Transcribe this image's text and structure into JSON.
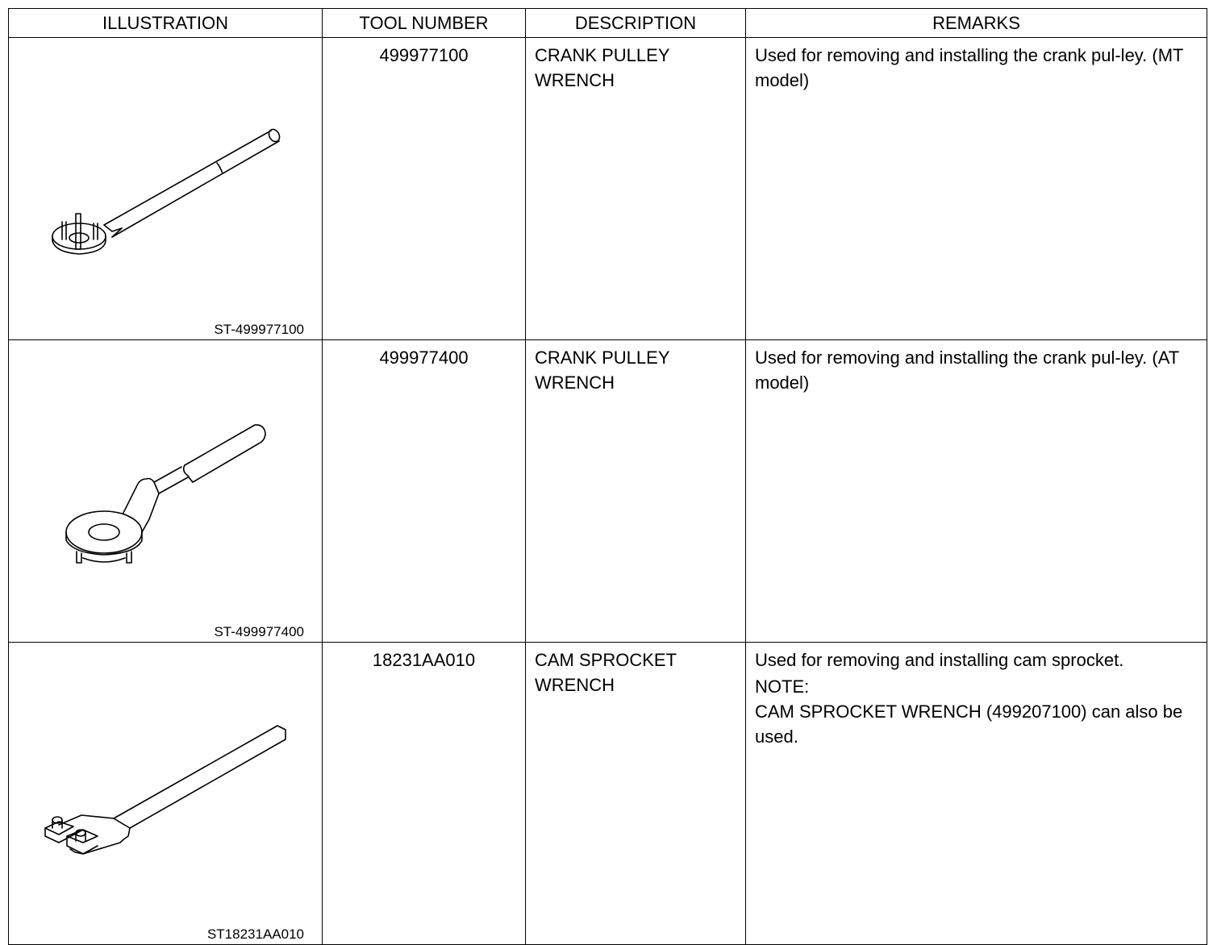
{
  "headers": [
    "ILLUSTRATION",
    "TOOL NUMBER",
    "DESCRIPTION",
    "REMARKS"
  ],
  "rows": [
    {
      "illustration_icon": "crank-pulley-wrench-mt",
      "caption": "ST-499977100",
      "tool_number": "499977100",
      "description": "CRANK PULLEY WRENCH",
      "remarks": "Used for removing and installing the crank pul-ley. (MT model)"
    },
    {
      "illustration_icon": "crank-pulley-wrench-at",
      "caption": "ST-499977400",
      "tool_number": "499977400",
      "description": "CRANK PULLEY WRENCH",
      "remarks": "Used for removing and installing the crank pul-ley. (AT model)"
    },
    {
      "illustration_icon": "cam-sprocket-wrench",
      "caption": "ST18231AA010",
      "tool_number": "18231AA010",
      "description": "CAM SPROCKET WRENCH",
      "remarks": "Used for removing and installing cam sprocket.",
      "note_label": "NOTE:",
      "note_text": "CAM SPROCKET WRENCH (499207100) can also be used."
    }
  ]
}
